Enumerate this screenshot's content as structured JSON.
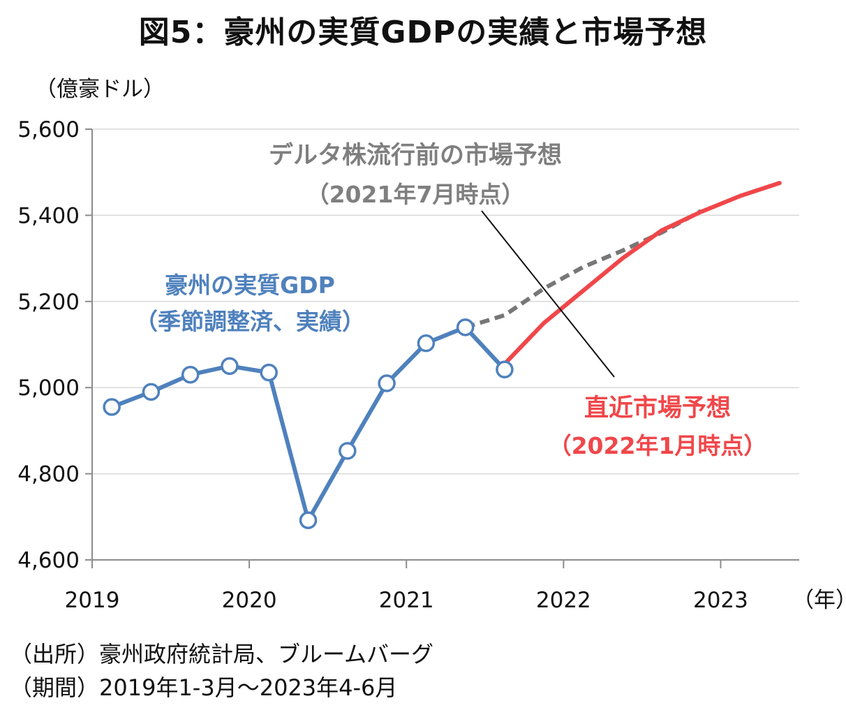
{
  "title": "図5：豪州の実質GDPの実績と市場予想",
  "chart_data": {
    "type": "line",
    "unit_label": "（億豪ドル）",
    "x_unit_label": "（年）",
    "x_ticks": [
      "2019",
      "2020",
      "2021",
      "2022",
      "2023"
    ],
    "y_ticks": [
      "4,600",
      "4,800",
      "5,000",
      "5,200",
      "5,400",
      "5,600"
    ],
    "ylim": [
      4600,
      5600
    ],
    "xlim": [
      2019.0,
      2023.5
    ],
    "grid": true,
    "series": [
      {
        "name": "豪州の実質GDP（季節調整済、実績）",
        "color": "#4f81bd",
        "style": "solid-markers",
        "x": [
          2019.125,
          2019.375,
          2019.625,
          2019.875,
          2020.125,
          2020.375,
          2020.625,
          2020.875,
          2021.125,
          2021.375,
          2021.625
        ],
        "values": [
          4955,
          4990,
          5030,
          5050,
          5035,
          4692,
          4853,
          5010,
          5103,
          5140,
          5042
        ]
      },
      {
        "name": "デルタ株流行前の市場予想（2021年7月時点）",
        "color": "#777777",
        "style": "dashed",
        "x": [
          2021.375,
          2021.625,
          2021.875,
          2022.125,
          2022.375,
          2022.625,
          2022.875
        ],
        "values": [
          5140,
          5168,
          5230,
          5280,
          5318,
          5360,
          5410
        ]
      },
      {
        "name": "直近市場予想（2022年1月時点）",
        "color": "#f0474a",
        "style": "solid",
        "x": [
          2021.625,
          2021.875,
          2022.125,
          2022.375,
          2022.625,
          2022.875,
          2023.125,
          2023.375
        ],
        "values": [
          5055,
          5150,
          5225,
          5300,
          5365,
          5408,
          5445,
          5475
        ]
      }
    ],
    "annotations": {
      "actual": [
        "豪州の実質GDP",
        "（季節調整済、実績）"
      ],
      "delta": [
        "デルタ株流行前の市場予想",
        "（2021年7月時点）"
      ],
      "latest": [
        "直近市場予想",
        "（2022年1月時点）"
      ]
    }
  },
  "source": {
    "line1": "（出所）豪州政府統計局、ブルームバーグ",
    "line2": "（期間）2019年1-3月～2023年4-6月"
  }
}
